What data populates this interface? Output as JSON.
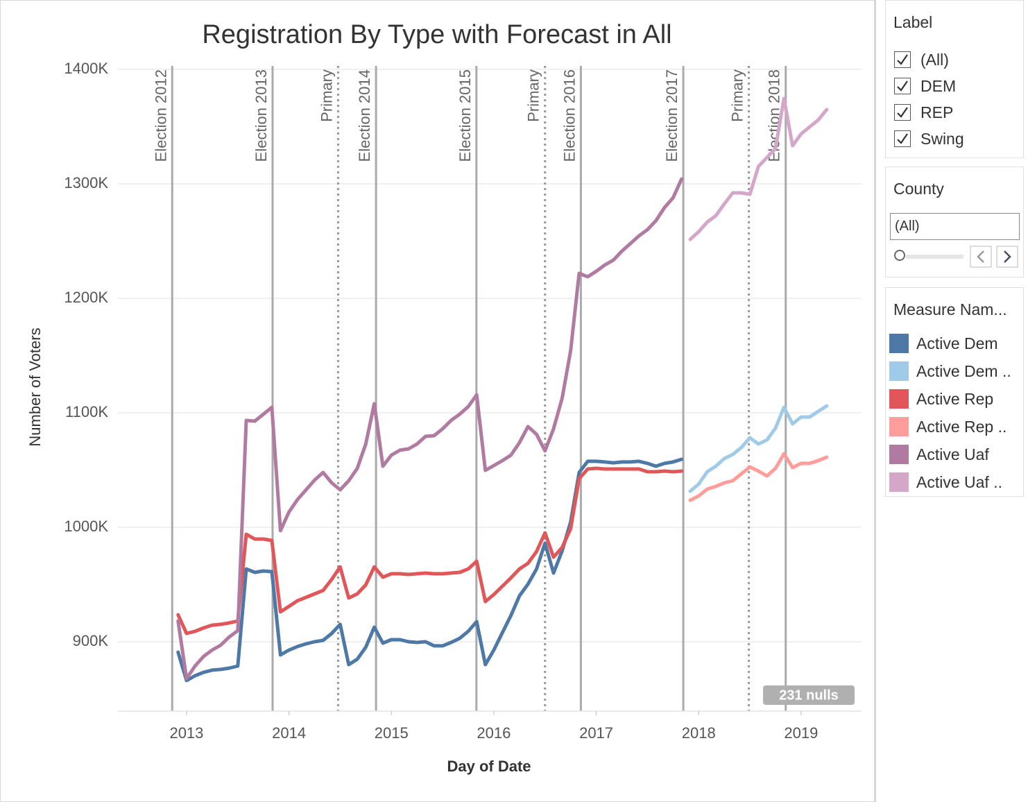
{
  "chart_data": {
    "type": "line",
    "title": "Registration By Type with Forecast in All",
    "x_label": "Day of Date",
    "y_label": "Number of Voters",
    "legend_title": "Measure Nam...",
    "nulls_indicator": "231 nulls",
    "xlim": [
      2012.33,
      2019.59
    ],
    "xticks": [
      2013,
      2014,
      2015,
      2016,
      2017,
      2018,
      2019
    ],
    "ylim": [
      839400,
      1403000
    ],
    "yticks": [
      {
        "value": 900000,
        "label": "900K"
      },
      {
        "value": 1000000,
        "label": "1000K"
      },
      {
        "value": 1100000,
        "label": "1100K"
      },
      {
        "value": 1200000,
        "label": "1200K"
      },
      {
        "value": 1300000,
        "label": "1300K"
      },
      {
        "value": 1400000,
        "label": "1400K"
      }
    ],
    "grid": true,
    "reference_lines": [
      {
        "label": "Election 2012",
        "x": 2012.86,
        "style": "solid"
      },
      {
        "label": "Election 2013",
        "x": 2013.84,
        "style": "solid"
      },
      {
        "label": "Primary",
        "x": 2014.48,
        "style": "dotted"
      },
      {
        "label": "Election 2014",
        "x": 2014.85,
        "style": "solid"
      },
      {
        "label": "Election 2015",
        "x": 2015.83,
        "style": "solid"
      },
      {
        "label": "Primary",
        "x": 2016.5,
        "style": "dotted"
      },
      {
        "label": "Election 2016",
        "x": 2016.85,
        "style": "solid"
      },
      {
        "label": "Election 2017",
        "x": 2017.85,
        "style": "solid"
      },
      {
        "label": "Primary",
        "x": 2018.49,
        "style": "dotted"
      },
      {
        "label": "Election 2018",
        "x": 2018.85,
        "style": "solid"
      }
    ],
    "x": [
      2012.917,
      2013.0,
      2013.083,
      2013.167,
      2013.25,
      2013.333,
      2013.417,
      2013.5,
      2013.583,
      2013.667,
      2013.75,
      2013.833,
      2013.917,
      2014.0,
      2014.083,
      2014.167,
      2014.25,
      2014.333,
      2014.417,
      2014.5,
      2014.583,
      2014.667,
      2014.75,
      2014.833,
      2014.917,
      2015.0,
      2015.083,
      2015.167,
      2015.25,
      2015.333,
      2015.417,
      2015.5,
      2015.583,
      2015.667,
      2015.75,
      2015.833,
      2015.917,
      2016.0,
      2016.083,
      2016.167,
      2016.25,
      2016.333,
      2016.417,
      2016.5,
      2016.583,
      2016.667,
      2016.75,
      2016.833,
      2016.917,
      2017.0,
      2017.083,
      2017.167,
      2017.25,
      2017.333,
      2017.417,
      2017.5,
      2017.583,
      2017.667,
      2017.75,
      2017.833,
      2017.917,
      2018.0,
      2018.083,
      2018.167,
      2018.25,
      2018.333,
      2018.417,
      2018.5,
      2018.583,
      2018.667,
      2018.75,
      2018.833,
      2018.917,
      2019.0,
      2019.083,
      2019.167,
      2019.25
    ],
    "series": [
      {
        "name": "Active Dem",
        "color": "#4e79a7",
        "values": [
          890900,
          866100,
          870300,
          873300,
          875200,
          875800,
          877000,
          878800,
          963600,
          960600,
          961800,
          961200,
          888500,
          892700,
          895800,
          898200,
          900000,
          901200,
          907300,
          915200,
          880000,
          884800,
          895200,
          912700,
          898800,
          901800,
          901800,
          900000,
          899400,
          900000,
          896400,
          896400,
          899400,
          903000,
          909100,
          917600,
          880000,
          892700,
          907900,
          923000,
          940000,
          950300,
          963600,
          986100,
          960000,
          979400,
          1004800,
          1047900,
          1057600,
          1057600,
          1057000,
          1056300,
          1057000,
          1057000,
          1057600,
          1055800,
          1053300,
          1055800,
          1057000,
          1059400,
          null,
          null,
          null,
          null,
          null,
          null,
          null,
          null,
          null,
          null,
          null,
          null,
          null,
          null,
          null,
          null,
          null
        ]
      },
      {
        "name": "Active Dem ..",
        "color": "#a0cbe8",
        "values": [
          null,
          null,
          null,
          null,
          null,
          null,
          null,
          null,
          null,
          null,
          null,
          null,
          null,
          null,
          null,
          null,
          null,
          null,
          null,
          null,
          null,
          null,
          null,
          null,
          null,
          null,
          null,
          null,
          null,
          null,
          null,
          null,
          null,
          null,
          null,
          null,
          null,
          null,
          null,
          null,
          null,
          null,
          null,
          null,
          null,
          null,
          null,
          null,
          null,
          null,
          null,
          null,
          null,
          null,
          null,
          null,
          null,
          null,
          null,
          null,
          1031500,
          1037600,
          1048500,
          1053300,
          1060000,
          1063600,
          1069700,
          1078200,
          1072700,
          1076300,
          1086600,
          1104800,
          1090300,
          1096300,
          1096300,
          1101200,
          1106000
        ]
      },
      {
        "name": "Active Rep",
        "color": "#e15759",
        "values": [
          923600,
          907300,
          909100,
          912100,
          914500,
          915200,
          916400,
          918200,
          993900,
          989700,
          989700,
          988500,
          926100,
          930900,
          935800,
          938800,
          941800,
          944800,
          954500,
          965400,
          938200,
          941800,
          949700,
          965400,
          956400,
          959400,
          959400,
          958800,
          959400,
          960000,
          959400,
          959400,
          960000,
          960600,
          963600,
          970300,
          935100,
          941200,
          948500,
          955800,
          963600,
          968500,
          978800,
          995100,
          973900,
          982400,
          998800,
          1042400,
          1050900,
          1051500,
          1050900,
          1050900,
          1050900,
          1050900,
          1050900,
          1048500,
          1048500,
          1049100,
          1048500,
          1049100,
          null,
          null,
          null,
          null,
          null,
          null,
          null,
          null,
          null,
          null,
          null,
          null,
          null,
          null,
          null,
          null,
          null
        ]
      },
      {
        "name": "Active Rep ..",
        "color": "#ff9d9a",
        "values": [
          null,
          null,
          null,
          null,
          null,
          null,
          null,
          null,
          null,
          null,
          null,
          null,
          null,
          null,
          null,
          null,
          null,
          null,
          null,
          null,
          null,
          null,
          null,
          null,
          null,
          null,
          null,
          null,
          null,
          null,
          null,
          null,
          null,
          null,
          null,
          null,
          null,
          null,
          null,
          null,
          null,
          null,
          null,
          null,
          null,
          null,
          null,
          null,
          null,
          null,
          null,
          null,
          null,
          null,
          null,
          null,
          null,
          null,
          null,
          null,
          1023600,
          1027300,
          1033300,
          1035700,
          1038800,
          1040600,
          1046700,
          1052700,
          1049100,
          1044800,
          1051500,
          1064200,
          1052100,
          1055800,
          1055800,
          1058200,
          1061200
        ]
      },
      {
        "name": "Active Uaf",
        "color": "#b07aa1",
        "values": [
          918200,
          867900,
          878800,
          887300,
          892700,
          897000,
          904200,
          909700,
          1093300,
          1092700,
          1098800,
          1104800,
          997000,
          1013300,
          1024200,
          1032700,
          1041200,
          1047900,
          1038800,
          1032700,
          1040600,
          1051500,
          1072700,
          1107900,
          1053300,
          1063000,
          1067300,
          1068500,
          1072700,
          1079400,
          1080000,
          1086000,
          1093300,
          1098800,
          1105400,
          1115700,
          1049700,
          1053900,
          1058200,
          1063000,
          1073900,
          1087900,
          1081200,
          1066700,
          1086000,
          1112700,
          1154500,
          1221800,
          1218800,
          1223600,
          1229100,
          1233300,
          1241200,
          1247800,
          1254500,
          1260000,
          1267800,
          1279400,
          1287800,
          1304200,
          null,
          null,
          null,
          null,
          null,
          null,
          null,
          null,
          null,
          null,
          null,
          null,
          null,
          null,
          null,
          null,
          null
        ]
      },
      {
        "name": "Active Uaf ..",
        "color": "#d4a6c8",
        "values": [
          null,
          null,
          null,
          null,
          null,
          null,
          null,
          null,
          null,
          null,
          null,
          null,
          null,
          null,
          null,
          null,
          null,
          null,
          null,
          null,
          null,
          null,
          null,
          null,
          null,
          null,
          null,
          null,
          null,
          null,
          null,
          null,
          null,
          null,
          null,
          null,
          null,
          null,
          null,
          null,
          null,
          null,
          null,
          null,
          null,
          null,
          null,
          null,
          null,
          null,
          null,
          null,
          null,
          null,
          null,
          null,
          null,
          null,
          null,
          null,
          1251500,
          1258100,
          1266600,
          1272100,
          1282400,
          1292100,
          1292100,
          1290900,
          1315100,
          1323000,
          1330900,
          1374500,
          1333300,
          1343600,
          1349700,
          1355700,
          1364800
        ]
      }
    ]
  },
  "filters": {
    "label": {
      "title": "Label",
      "options": [
        "(All)",
        "DEM",
        "REP",
        "Swing"
      ]
    },
    "county": {
      "title": "County",
      "value": "(All)"
    }
  }
}
